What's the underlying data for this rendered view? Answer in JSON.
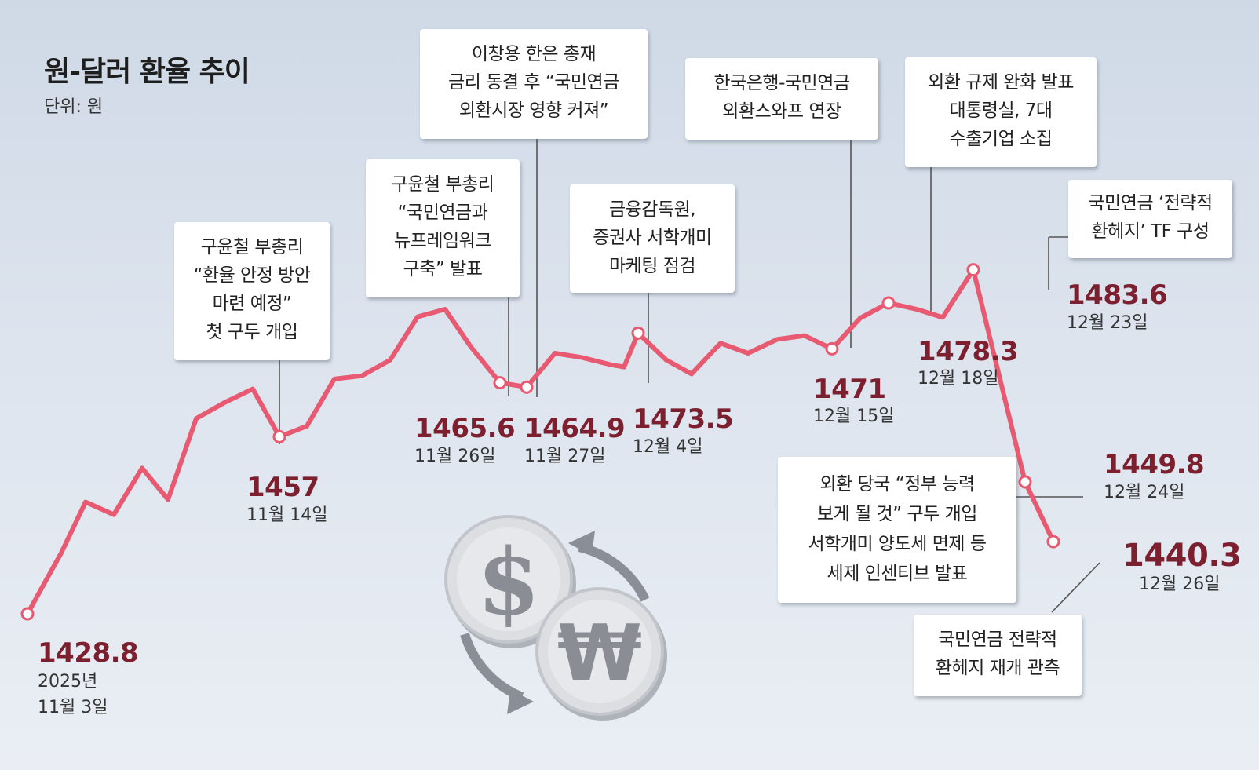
{
  "colors": {
    "line": "#e85a72",
    "value_text": "#7c1f2e",
    "background": "#dbe3ed",
    "connector": "#555555",
    "coin": "#c9ccd2",
    "coin_symbol": "#8a8d93"
  },
  "header": {
    "title": "원-달러 환율 추이",
    "unit": "단위: 원"
  },
  "chart_data": {
    "type": "line",
    "title": "원-달러 환율 추이",
    "unit": "단위: 원",
    "ylim": [
      1420,
      1490
    ],
    "series": [
      {
        "values": [
          1428.8,
          1438.5,
          1446.6,
          1444.6,
          1452.0,
          1447.0,
          1459.9,
          1462.5,
          1464.6,
          1457.0,
          1458.7,
          1466.2,
          1466.7,
          1469.2,
          1476.1,
          1477.3,
          1471.3,
          1465.6,
          1464.9,
          1470.3,
          1469.6,
          1468.5,
          1468.1,
          1473.5,
          1469.2,
          1467.0,
          1471.9,
          1470.3,
          1472.5,
          1473.1,
          1471.0,
          1475.9,
          1478.3,
          1477.3,
          1476.0,
          1483.6,
          1449.8,
          1440.3
        ]
      }
    ],
    "x_labels": [
      "2025년\n11월 3일",
      "",
      "",
      "",
      "",
      "",
      "",
      "",
      "",
      "11월 14일",
      "",
      "",
      "",
      "",
      "",
      "",
      "",
      "11월 26일",
      "11월 27일",
      "",
      "",
      "",
      "",
      "12월 4일",
      "",
      "",
      "",
      "",
      "",
      "",
      "12월 15일",
      "",
      "12월 18일",
      "",
      "",
      "12월 23일",
      "12월 24일",
      "12월 26일"
    ],
    "labeled_points": [
      {
        "index": 0,
        "value": "1428.8",
        "date": "2025년\n11월 3일"
      },
      {
        "index": 9,
        "value": "1457",
        "date": "11월 14일"
      },
      {
        "index": 17,
        "value": "1465.6",
        "date": "11월 26일"
      },
      {
        "index": 18,
        "value": "1464.9",
        "date": "11월 27일"
      },
      {
        "index": 23,
        "value": "1473.5",
        "date": "12월 4일"
      },
      {
        "index": 30,
        "value": "1471",
        "date": "12월 15일"
      },
      {
        "index": 32,
        "value": "1478.3",
        "date": "12월 18일"
      },
      {
        "index": 35,
        "value": "1483.6",
        "date": "12월 23일"
      },
      {
        "index": 36,
        "value": "1449.8",
        "date": "12월 24일"
      },
      {
        "index": 37,
        "value": "1440.3",
        "date": "12월 26일"
      }
    ],
    "annotations": [
      {
        "text": "구윤철 부총리\n“환율 안정 방안\n마련 예정”\n첫 구두 개입"
      },
      {
        "text": "구윤철 부총리\n“국민연금과\n뉴프레임워크\n구축” 발표"
      },
      {
        "text": "이창용 한은 총재\n금리 동결 후 “국민연금\n외환시장 영향 커져”"
      },
      {
        "text": "금융감독원,\n증권사 서학개미\n마케팅 점검"
      },
      {
        "text": "한국은행-국민연금\n외환스와프 연장"
      },
      {
        "text": "외환 규제 완화 발표\n대통령실, 7대\n수출기업 소집"
      },
      {
        "text": "국민연금 ‘전략적\n환헤지’ TF 구성"
      },
      {
        "text": "외환 당국 “정부 능력\n보게 될 것” 구두 개입\n서학개미 양도세 면제 등\n세제 인센티브 발표"
      },
      {
        "text": "국민연금 전략적\n환헤지 재개 관측"
      }
    ]
  },
  "illustration": {
    "dollar_symbol": "$",
    "won_symbol": "₩",
    "arrow_icon": "exchange-arrows-icon"
  }
}
